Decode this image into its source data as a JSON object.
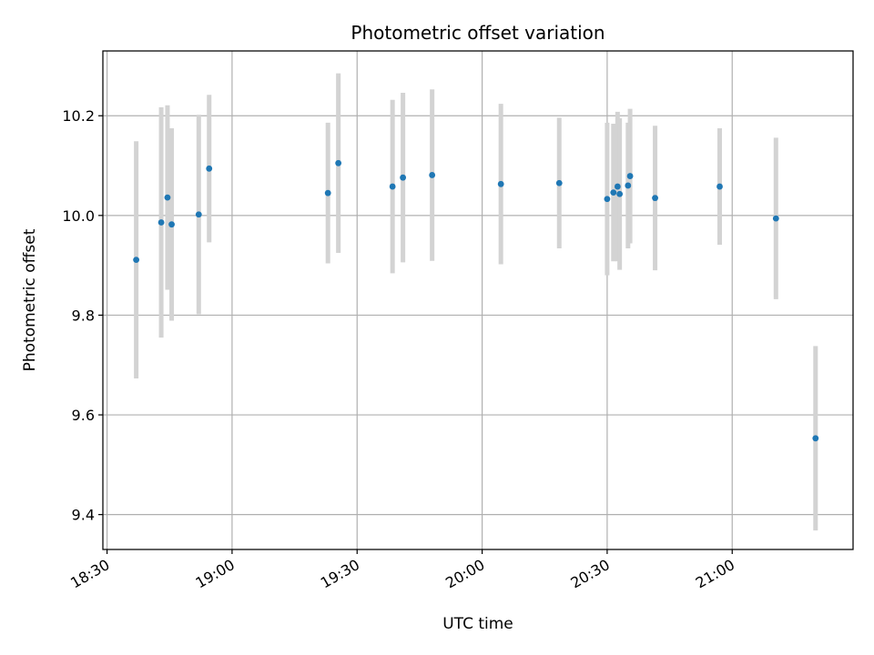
{
  "chart_data": {
    "type": "scatter",
    "title": "Photometric offset variation",
    "xlabel": "UTC time",
    "ylabel": "Photometric offset",
    "xlim": [
      "18:29",
      "21:29"
    ],
    "ylim": [
      9.33,
      10.33
    ],
    "x_ticks": [
      "18:30",
      "19:00",
      "19:30",
      "20:00",
      "20:30",
      "21:00"
    ],
    "y_ticks": [
      "9.4",
      "9.6",
      "9.8",
      "10.0",
      "10.2"
    ],
    "grid": true,
    "point_color": "#1f77b4",
    "errorbar_color": "#d3d3d3",
    "points": [
      {
        "x": "18:37",
        "y": 9.911,
        "err": 0.238
      },
      {
        "x": "18:43",
        "y": 9.986,
        "err": 0.231
      },
      {
        "x": "18:44.5",
        "y": 10.036,
        "err": 0.185
      },
      {
        "x": "18:45.5",
        "y": 9.982,
        "err": 0.193
      },
      {
        "x": "18:52",
        "y": 10.002,
        "err": 0.2
      },
      {
        "x": "18:54.5",
        "y": 10.094,
        "err": 0.148
      },
      {
        "x": "19:23",
        "y": 10.045,
        "err": 0.141
      },
      {
        "x": "19:25.5",
        "y": 10.105,
        "err": 0.18
      },
      {
        "x": "19:38.5",
        "y": 10.058,
        "err": 0.174
      },
      {
        "x": "19:41",
        "y": 10.076,
        "err": 0.17
      },
      {
        "x": "19:48",
        "y": 10.081,
        "err": 0.172
      },
      {
        "x": "20:04.5",
        "y": 10.063,
        "err": 0.161
      },
      {
        "x": "20:18.5",
        "y": 10.065,
        "err": 0.131
      },
      {
        "x": "20:30",
        "y": 10.033,
        "err": 0.153
      },
      {
        "x": "20:31.5",
        "y": 10.046,
        "err": 0.138
      },
      {
        "x": "20:32.5",
        "y": 10.058,
        "err": 0.15
      },
      {
        "x": "20:33",
        "y": 10.043,
        "err": 0.152
      },
      {
        "x": "20:35",
        "y": 10.06,
        "err": 0.126
      },
      {
        "x": "20:35.5",
        "y": 10.079,
        "err": 0.135
      },
      {
        "x": "20:41.5",
        "y": 10.035,
        "err": 0.145
      },
      {
        "x": "20:57",
        "y": 10.058,
        "err": 0.117
      },
      {
        "x": "21:10.5",
        "y": 9.994,
        "err": 0.162
      },
      {
        "x": "21:20",
        "y": 9.553,
        "err": 0.185
      }
    ]
  }
}
